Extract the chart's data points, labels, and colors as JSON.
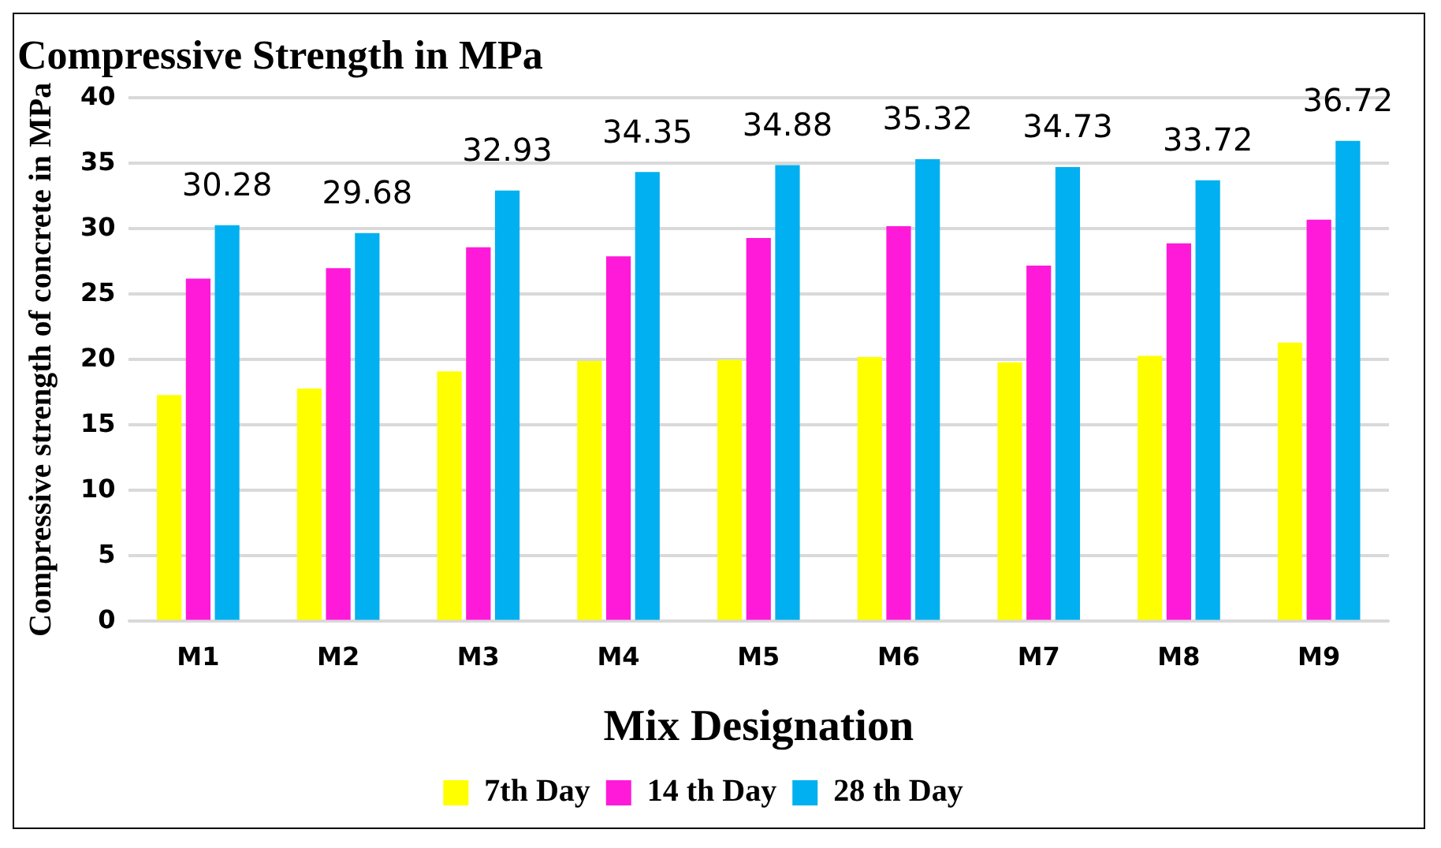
{
  "chart_data": {
    "type": "bar",
    "title": "Compressive Strength in MPa",
    "xlabel": "Mix Designation",
    "ylabel": "Compressive strength of concrete in MPa",
    "categories": [
      "M1",
      "M2",
      "M3",
      "M4",
      "M5",
      "M6",
      "M7",
      "M8",
      "M9"
    ],
    "series": [
      {
        "name": "7th Day",
        "color": "#ffff00",
        "values": [
          17.3,
          17.8,
          19.1,
          19.9,
          20.0,
          20.2,
          19.8,
          20.3,
          21.3
        ]
      },
      {
        "name": "14 th Day",
        "color": "#ff1ad9",
        "values": [
          26.2,
          27.0,
          28.6,
          27.9,
          29.3,
          30.2,
          27.2,
          28.9,
          30.7
        ]
      },
      {
        "name": "28 th Day",
        "color": "#00b0f0",
        "values": [
          30.28,
          29.68,
          32.93,
          34.35,
          34.88,
          35.32,
          34.73,
          33.72,
          36.72
        ],
        "value_labels": [
          "30.28",
          "29.68",
          "32.93",
          "34.35",
          "34.88",
          "35.32",
          "34.73",
          "33.72",
          "36.72"
        ]
      }
    ],
    "ylim": [
      0,
      40
    ],
    "yticks": [
      0,
      5,
      10,
      15,
      20,
      25,
      30,
      35,
      40
    ],
    "grid": "y",
    "legend": "bottom"
  }
}
